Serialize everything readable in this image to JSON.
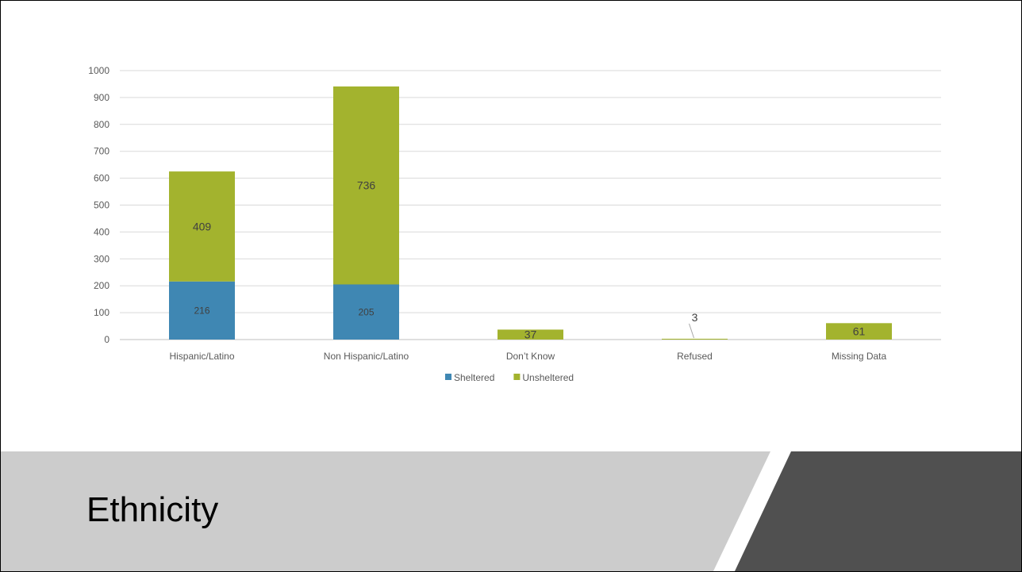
{
  "slide": {
    "title": "Ethnicity"
  },
  "colors": {
    "sheltered": "#3f87b3",
    "unsheltered": "#a3b32e",
    "footer_light": "#cccccc",
    "footer_dark": "#505050"
  },
  "chart_data": {
    "type": "bar",
    "stacked": true,
    "categories": [
      "Hispanic/Latino",
      "Non Hispanic/Latino",
      "Don’t Know",
      "Refused",
      "Missing Data"
    ],
    "series": [
      {
        "name": "Sheltered",
        "color": "#3f87b3",
        "values": [
          216,
          205,
          0,
          0,
          0
        ]
      },
      {
        "name": "Unsheltered",
        "color": "#a3b32e",
        "values": [
          409,
          736,
          37,
          3,
          61
        ]
      }
    ],
    "data_labels": [
      [
        "216",
        "205",
        null,
        null,
        null
      ],
      [
        "409",
        "736",
        "37",
        "3",
        "61"
      ]
    ],
    "y_ticks": [
      0,
      100,
      200,
      300,
      400,
      500,
      600,
      700,
      800,
      900,
      1000
    ],
    "ylim": [
      0,
      1000
    ],
    "grid": true,
    "legend": "bottom"
  }
}
